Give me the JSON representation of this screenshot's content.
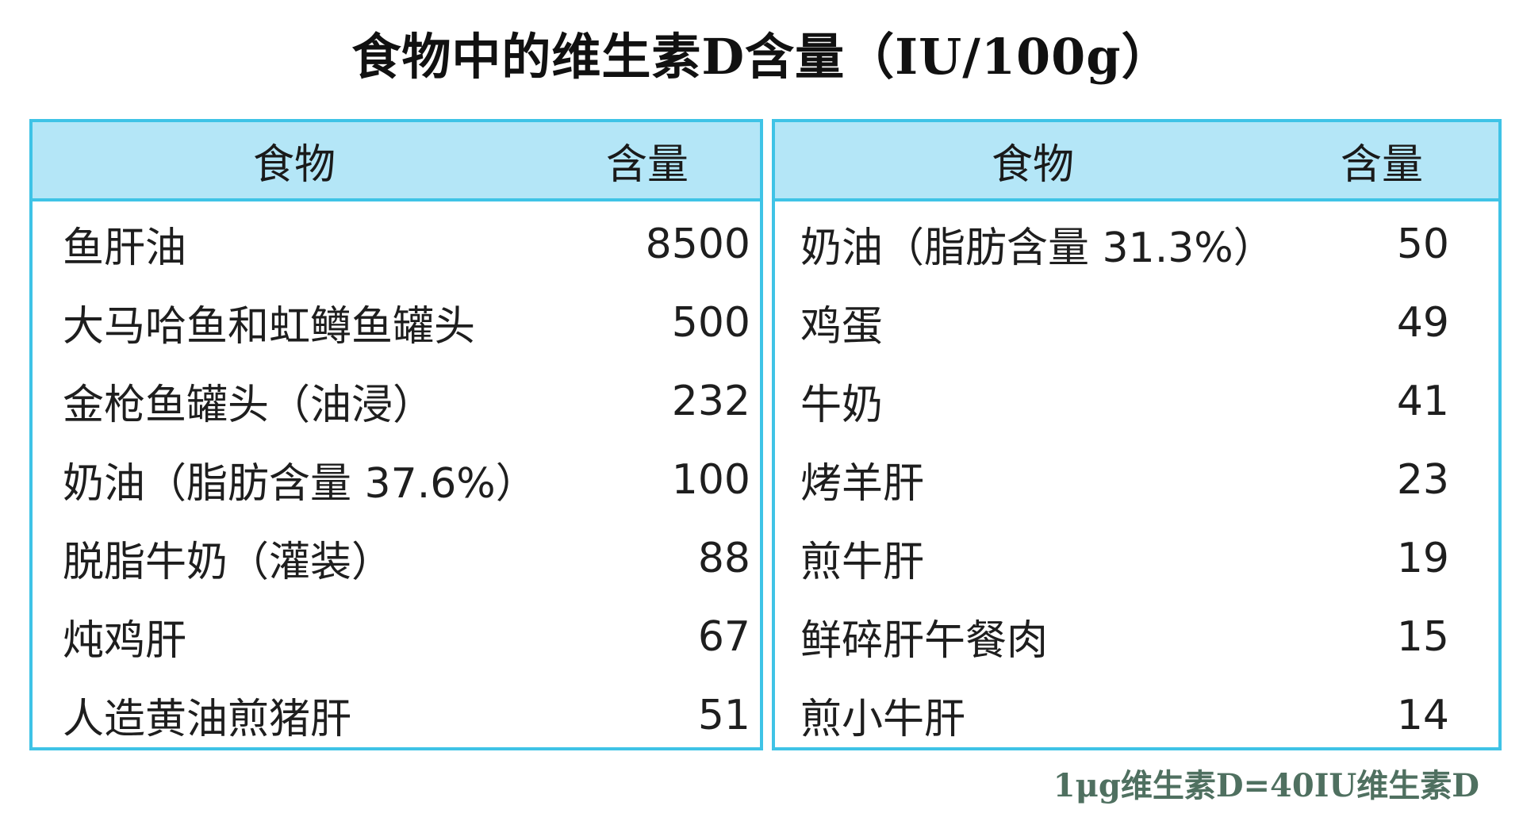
{
  "title": "食物中的维生素D含量（IU/100g）",
  "colors": {
    "border": "#3fc3e6",
    "header_bg": "#b4e6f7",
    "note": "#4f7060"
  },
  "left_table": {
    "headers": {
      "food": "食物",
      "amount": "含量"
    },
    "rows": [
      {
        "food": "鱼肝油",
        "amount": "8500"
      },
      {
        "food": "大马哈鱼和虹鳟鱼罐头",
        "amount": "500"
      },
      {
        "food": "金枪鱼罐头（油浸）",
        "amount": "232"
      },
      {
        "food": "奶油（脂肪含量 37.6%）",
        "amount": "100"
      },
      {
        "food": "脱脂牛奶（灌装）",
        "amount": "88"
      },
      {
        "food": "炖鸡肝",
        "amount": "67"
      },
      {
        "food": "人造黄油煎猪肝",
        "amount": "51"
      }
    ]
  },
  "right_table": {
    "headers": {
      "food": "食物",
      "amount": "含量"
    },
    "rows": [
      {
        "food": "奶油（脂肪含量 31.3%）",
        "amount": "50"
      },
      {
        "food": "鸡蛋",
        "amount": "49"
      },
      {
        "food": "牛奶",
        "amount": "41"
      },
      {
        "food": "烤羊肝",
        "amount": "23"
      },
      {
        "food": "煎牛肝",
        "amount": "19"
      },
      {
        "food": "鲜碎肝午餐肉",
        "amount": "15"
      },
      {
        "food": "煎小牛肝",
        "amount": "14"
      }
    ]
  },
  "note": "1μg维生素D=40IU维生素D"
}
